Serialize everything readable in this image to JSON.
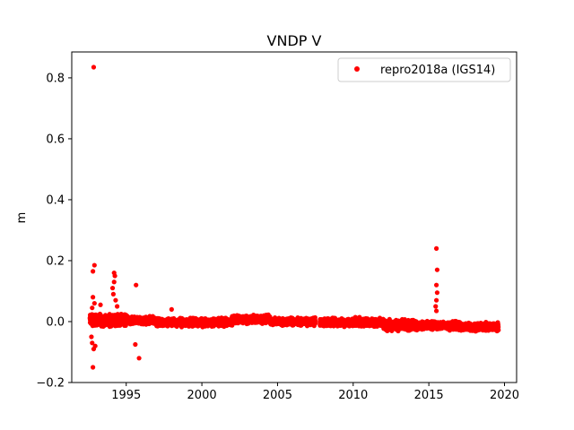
{
  "chart_data": {
    "type": "scatter",
    "title": "VNDP V",
    "xlabel": "",
    "ylabel": "m",
    "xlim": [
      1991.4,
      2020.8
    ],
    "ylim": [
      -0.2,
      0.885
    ],
    "xticks": [
      1995,
      2000,
      2005,
      2010,
      2015,
      2020
    ],
    "yticks": [
      -0.2,
      0.0,
      0.2,
      0.4,
      0.6,
      0.8
    ],
    "ytick_labels": [
      "−0.2",
      "0.0",
      "0.2",
      "0.4",
      "0.6",
      "0.8"
    ],
    "grid": false,
    "legend": {
      "position": "top-right",
      "entries": [
        "repro2018a (IGS14)"
      ]
    },
    "series": [
      {
        "name": "repro2018a (IGS14)",
        "color": "#ff0000",
        "marker": "circle",
        "bands": [
          {
            "x_start": 1992.6,
            "x_end": 1995.0,
            "y_low": -0.02,
            "y_high": 0.03
          },
          {
            "x_start": 1995.0,
            "x_end": 1997.0,
            "y_low": -0.015,
            "y_high": 0.02
          },
          {
            "x_start": 1997.0,
            "x_end": 2002.0,
            "y_low": -0.02,
            "y_high": 0.015
          },
          {
            "x_start": 2002.0,
            "x_end": 2004.5,
            "y_low": -0.01,
            "y_high": 0.025
          },
          {
            "x_start": 2004.5,
            "x_end": 2007.5,
            "y_low": -0.015,
            "y_high": 0.015
          },
          {
            "x_start": 2007.8,
            "x_end": 2012.0,
            "y_low": -0.02,
            "y_high": 0.015
          },
          {
            "x_start": 2012.0,
            "x_end": 2014.0,
            "y_low": -0.035,
            "y_high": 0.01
          },
          {
            "x_start": 2014.0,
            "x_end": 2017.0,
            "y_low": -0.03,
            "y_high": 0.005
          },
          {
            "x_start": 2017.0,
            "x_end": 2019.6,
            "y_low": -0.035,
            "y_high": 0.0
          }
        ],
        "outliers": [
          {
            "x": 1992.85,
            "y": 0.835
          },
          {
            "x": 1992.9,
            "y": 0.185
          },
          {
            "x": 1992.8,
            "y": 0.165
          },
          {
            "x": 1992.8,
            "y": 0.08
          },
          {
            "x": 1992.75,
            "y": 0.045
          },
          {
            "x": 1992.9,
            "y": 0.06
          },
          {
            "x": 1992.7,
            "y": -0.05
          },
          {
            "x": 1992.75,
            "y": -0.07
          },
          {
            "x": 1992.85,
            "y": -0.09
          },
          {
            "x": 1992.8,
            "y": -0.15
          },
          {
            "x": 1992.95,
            "y": -0.08
          },
          {
            "x": 1993.3,
            "y": 0.055
          },
          {
            "x": 1994.2,
            "y": 0.16
          },
          {
            "x": 1994.25,
            "y": 0.15
          },
          {
            "x": 1994.2,
            "y": 0.13
          },
          {
            "x": 1994.1,
            "y": 0.11
          },
          {
            "x": 1994.15,
            "y": 0.09
          },
          {
            "x": 1994.3,
            "y": 0.07
          },
          {
            "x": 1994.4,
            "y": 0.05
          },
          {
            "x": 1995.6,
            "y": -0.075
          },
          {
            "x": 1995.65,
            "y": 0.12
          },
          {
            "x": 1995.85,
            "y": -0.12
          },
          {
            "x": 1998.0,
            "y": 0.04
          },
          {
            "x": 2015.5,
            "y": 0.24
          },
          {
            "x": 2015.55,
            "y": 0.17
          },
          {
            "x": 2015.5,
            "y": 0.12
          },
          {
            "x": 2015.55,
            "y": 0.095
          },
          {
            "x": 2015.5,
            "y": 0.07
          },
          {
            "x": 2015.45,
            "y": 0.05
          },
          {
            "x": 2015.5,
            "y": 0.035
          }
        ]
      }
    ]
  }
}
